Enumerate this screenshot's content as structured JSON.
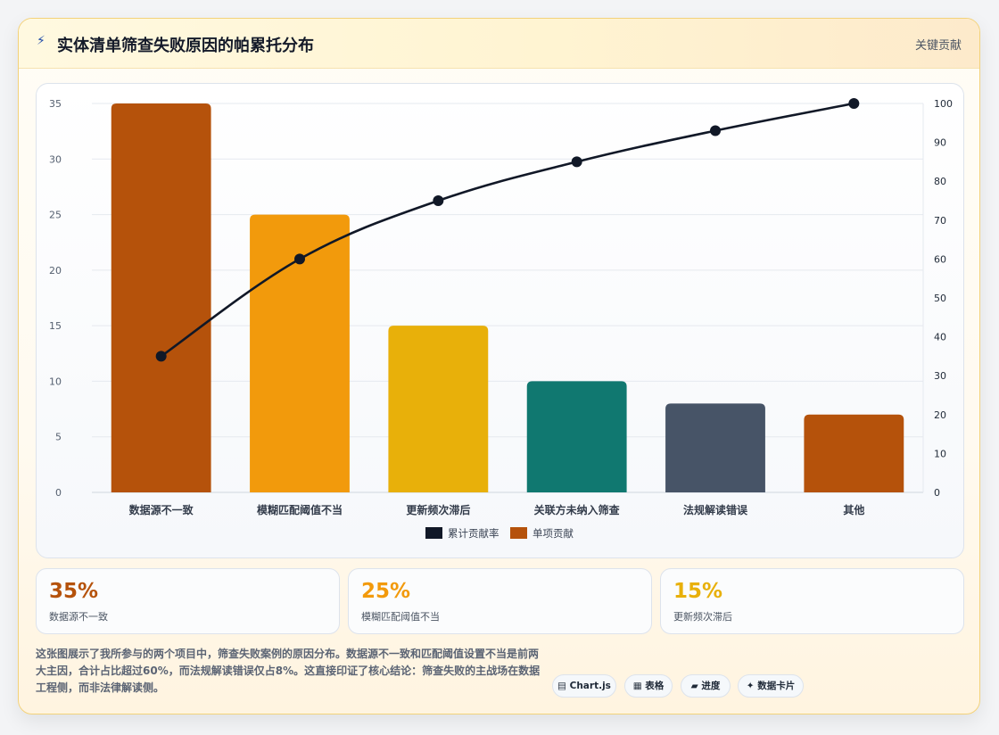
{
  "header": {
    "icon": "lightning-icon",
    "title": "实体清单筛查失败原因的帕累托分布",
    "tag": "关键贡献"
  },
  "colors": {
    "accent_brown": "#b5520b",
    "accent_orange": "#f29a0c",
    "accent_yellow": "#e8b00a",
    "teal": "#107870",
    "slate": "#475467",
    "line": "#111827"
  },
  "chart_data": {
    "type": "bar",
    "categories": [
      "数据源不一致",
      "模糊匹配阈值不当",
      "更新频次滞后",
      "关联方未纳入筛查",
      "法规解读错误",
      "其他"
    ],
    "series": [
      {
        "name": "单项贡献",
        "type": "bar",
        "axis": "left",
        "values": [
          35,
          25,
          15,
          10,
          8,
          7
        ],
        "colors": [
          "#b5520b",
          "#f29a0c",
          "#e8b00a",
          "#107870",
          "#475467",
          "#b5520b"
        ]
      },
      {
        "name": "累计贡献率",
        "type": "line",
        "axis": "right",
        "values": [
          35,
          60,
          75,
          85,
          93,
          100
        ],
        "color": "#111827"
      }
    ],
    "y_left": {
      "ylim": [
        0,
        35
      ],
      "ticks": [
        0,
        5,
        10,
        15,
        20,
        25,
        30,
        35
      ]
    },
    "y_right": {
      "ylim": [
        0,
        100
      ],
      "ticks": [
        0,
        10,
        20,
        30,
        40,
        50,
        60,
        70,
        80,
        90,
        100
      ]
    },
    "legend": [
      "累计贡献率",
      "单项贡献"
    ],
    "legend_position": "bottom",
    "grid": true
  },
  "stats": [
    {
      "value": "35%",
      "label": "数据源不一致",
      "color": "#b5520b"
    },
    {
      "value": "25%",
      "label": "模糊匹配阈值不当",
      "color": "#f29a0c"
    },
    {
      "value": "15%",
      "label": "更新频次滞后",
      "color": "#e8b00a"
    }
  ],
  "summary": "这张图展示了我所参与的两个项目中，筛查失败案例的原因分布。数据源不一致和匹配阈值设置不当是前两大主因，合计占比超过60%，而法规解读错误仅占8%。这直接印证了核心结论：筛查失败的主战场在数据工程侧，而非法律解读侧。",
  "pills": [
    {
      "icon": "chart-icon",
      "label": "Chart.js"
    },
    {
      "icon": "table-icon",
      "label": "表格"
    },
    {
      "icon": "progress-icon",
      "label": "进度"
    },
    {
      "icon": "card-icon",
      "label": "数据卡片"
    }
  ]
}
